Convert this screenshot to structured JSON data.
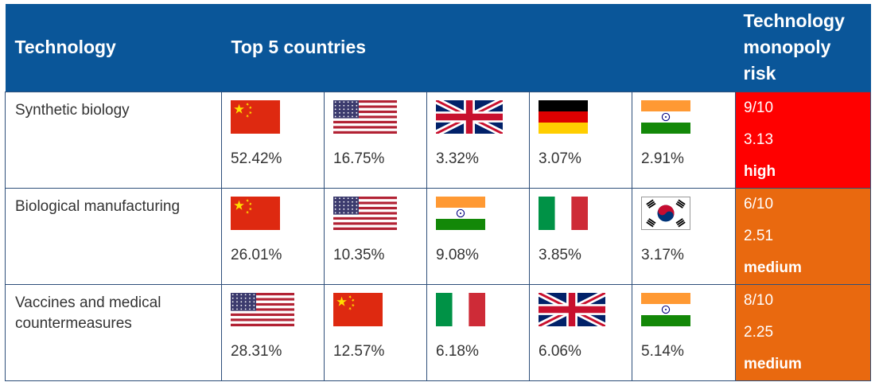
{
  "header": {
    "technology": "Technology",
    "top_countries": "Top 5 countries",
    "risk": "Technology monopoly risk"
  },
  "rows": [
    {
      "technology": "Synthetic biology",
      "countries": [
        {
          "flag": "china-flag-icon",
          "share": "52.42%"
        },
        {
          "flag": "usa-flag-icon",
          "share": "16.75%"
        },
        {
          "flag": "uk-flag-icon",
          "share": "3.32%"
        },
        {
          "flag": "germany-flag-icon",
          "share": "3.07%"
        },
        {
          "flag": "india-flag-icon",
          "share": "2.91%"
        }
      ],
      "risk": {
        "score": "9/10",
        "value": "3.13",
        "level": "high"
      }
    },
    {
      "technology": "Biological manufacturing",
      "countries": [
        {
          "flag": "china-flag-icon",
          "share": "26.01%"
        },
        {
          "flag": "usa-flag-icon",
          "share": "10.35%"
        },
        {
          "flag": "india-flag-icon",
          "share": "9.08%"
        },
        {
          "flag": "italy-flag-icon",
          "share": "3.85%"
        },
        {
          "flag": "south-korea-flag-icon",
          "share": "3.17%"
        }
      ],
      "risk": {
        "score": "6/10",
        "value": "2.51",
        "level": "medium"
      }
    },
    {
      "technology": "Vaccines and medical countermeasures",
      "countries": [
        {
          "flag": "usa-flag-icon",
          "share": "28.31%"
        },
        {
          "flag": "china-flag-icon",
          "share": "12.57%"
        },
        {
          "flag": "italy-flag-icon",
          "share": "6.18%"
        },
        {
          "flag": "uk-flag-icon",
          "share": "6.06%"
        },
        {
          "flag": "india-flag-icon",
          "share": "5.14%"
        }
      ],
      "risk": {
        "score": "8/10",
        "value": "2.25",
        "level": "medium"
      }
    }
  ],
  "colors": {
    "header_bg": "#0a5699",
    "risk_high": "#ff0000",
    "risk_medium": "#e9690f"
  }
}
